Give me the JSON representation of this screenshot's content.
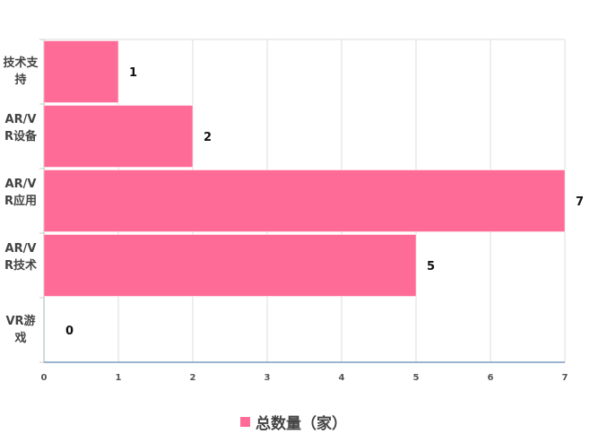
{
  "chart_data": {
    "type": "bar",
    "orientation": "horizontal",
    "categories": [
      "技术支持",
      "AR/VR设备",
      "AR/VR应用",
      "AR/VR技术",
      "VR游戏"
    ],
    "series": [
      {
        "name": "总数量（家）",
        "values": [
          1,
          2,
          7,
          5,
          0
        ],
        "color": "#ff6b97"
      }
    ],
    "xlim": [
      0,
      7
    ],
    "xticks": [
      "0",
      "1",
      "2",
      "3",
      "4",
      "5",
      "6",
      "7"
    ],
    "grid": true,
    "legend": "bottom",
    "data_labels": true
  }
}
